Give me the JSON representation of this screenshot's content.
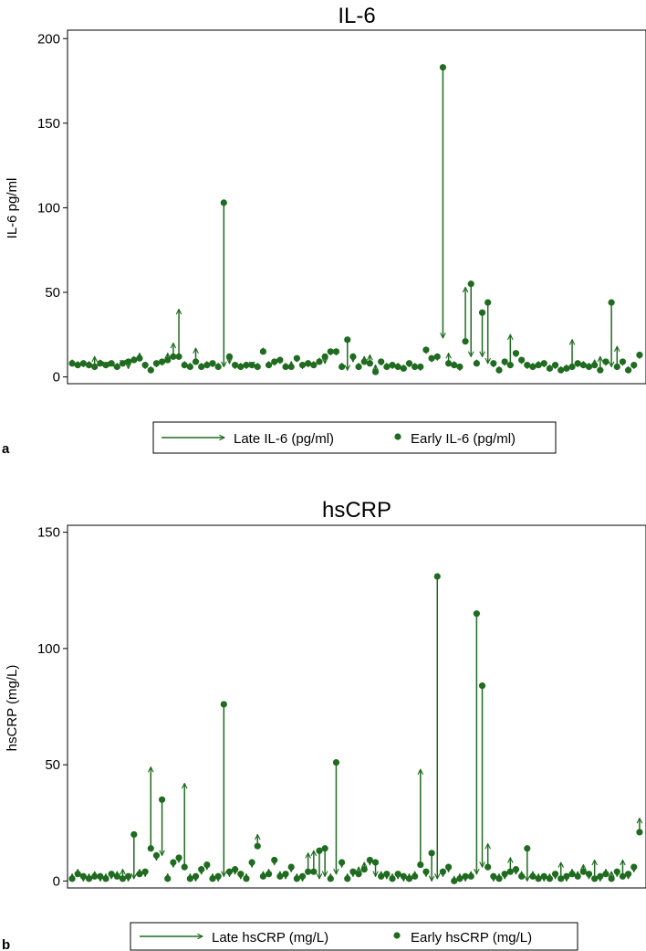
{
  "colors": {
    "mark": "#1f6b1f",
    "axis": "#000000",
    "frame": "#000000"
  },
  "chart_data": [
    {
      "type": "scatter",
      "panel_label": "a",
      "title": "IL-6",
      "ylabel": "IL-6 pg/ml",
      "xlabel": "",
      "ylim": [
        -4,
        205
      ],
      "yticks": [
        0,
        50,
        100,
        150,
        200
      ],
      "grid": false,
      "legend_position": "bottom",
      "series": [
        {
          "name": "Late IL-6 (pg/ml)",
          "marker": "arrow"
        },
        {
          "name": "Early IL-6 (pg/ml)",
          "marker": "dot"
        }
      ],
      "pairs": [
        {
          "x": 1,
          "early": 8,
          "late": 10
        },
        {
          "x": 2,
          "early": 7,
          "late": 9
        },
        {
          "x": 3,
          "early": 8,
          "late": 6
        },
        {
          "x": 4,
          "early": 7,
          "late": 9
        },
        {
          "x": 5,
          "early": 6,
          "late": 12
        },
        {
          "x": 6,
          "early": 8,
          "late": 10
        },
        {
          "x": 7,
          "early": 7,
          "late": 6
        },
        {
          "x": 8,
          "early": 8,
          "late": 9
        },
        {
          "x": 9,
          "early": 6,
          "late": 8
        },
        {
          "x": 10,
          "early": 8,
          "late": 7
        },
        {
          "x": 11,
          "early": 9,
          "late": 5
        },
        {
          "x": 12,
          "early": 10,
          "late": 12
        },
        {
          "x": 13,
          "early": 11,
          "late": 14
        },
        {
          "x": 14,
          "early": 7,
          "late": 5
        },
        {
          "x": 15,
          "early": 4,
          "late": 6
        },
        {
          "x": 16,
          "early": 8,
          "late": 6
        },
        {
          "x": 17,
          "early": 9,
          "late": 7
        },
        {
          "x": 18,
          "early": 10,
          "late": 14
        },
        {
          "x": 19,
          "early": 12,
          "late": 20
        },
        {
          "x": 20,
          "early": 12,
          "late": 40
        },
        {
          "x": 21,
          "early": 7,
          "late": 9
        },
        {
          "x": 22,
          "early": 6,
          "late": 8
        },
        {
          "x": 23,
          "early": 9,
          "late": 17
        },
        {
          "x": 24,
          "early": 6,
          "late": 8
        },
        {
          "x": 25,
          "early": 7,
          "late": 9
        },
        {
          "x": 26,
          "early": 8,
          "late": 6
        },
        {
          "x": 27,
          "early": 6,
          "late": 8
        },
        {
          "x": 28,
          "early": 103,
          "late": 6
        },
        {
          "x": 29,
          "early": 12,
          "late": 8
        },
        {
          "x": 30,
          "early": 7,
          "late": 5
        },
        {
          "x": 31,
          "early": 6,
          "late": 8
        },
        {
          "x": 32,
          "early": 7,
          "late": 5
        },
        {
          "x": 33,
          "early": 7,
          "late": 6
        },
        {
          "x": 34,
          "early": 6,
          "late": 8
        },
        {
          "x": 35,
          "early": 15,
          "late": 17
        },
        {
          "x": 36,
          "early": 7,
          "late": 9
        },
        {
          "x": 37,
          "early": 9,
          "late": 7
        },
        {
          "x": 38,
          "early": 10,
          "late": 8
        },
        {
          "x": 39,
          "early": 6,
          "late": 8
        },
        {
          "x": 40,
          "early": 6,
          "late": 9
        },
        {
          "x": 41,
          "early": 11,
          "late": 9
        },
        {
          "x": 42,
          "early": 7,
          "late": 5
        },
        {
          "x": 43,
          "early": 8,
          "late": 6
        },
        {
          "x": 44,
          "early": 7,
          "late": 9
        },
        {
          "x": 45,
          "early": 9,
          "late": 11
        },
        {
          "x": 46,
          "early": 12,
          "late": 8
        },
        {
          "x": 47,
          "early": 15,
          "late": 13
        },
        {
          "x": 48,
          "early": 15,
          "late": 13
        },
        {
          "x": 49,
          "early": 6,
          "late": 8
        },
        {
          "x": 50,
          "early": 22,
          "late": 4
        },
        {
          "x": 51,
          "early": 12,
          "late": 9
        },
        {
          "x": 52,
          "early": 6,
          "late": 8
        },
        {
          "x": 53,
          "early": 9,
          "late": 12
        },
        {
          "x": 54,
          "early": 8,
          "late": 13
        },
        {
          "x": 55,
          "early": 3,
          "late": 7
        },
        {
          "x": 56,
          "early": 9,
          "late": 7
        },
        {
          "x": 57,
          "early": 6,
          "late": 8
        },
        {
          "x": 58,
          "early": 7,
          "late": 5
        },
        {
          "x": 59,
          "early": 6,
          "late": 8
        },
        {
          "x": 60,
          "early": 5,
          "late": 7
        },
        {
          "x": 61,
          "early": 8,
          "late": 6
        },
        {
          "x": 62,
          "early": 6,
          "late": 8
        },
        {
          "x": 63,
          "early": 6,
          "late": 4
        },
        {
          "x": 64,
          "early": 16,
          "late": 14
        },
        {
          "x": 65,
          "early": 11,
          "late": 9
        },
        {
          "x": 66,
          "early": 12,
          "late": 10
        },
        {
          "x": 67,
          "early": 183,
          "late": 23
        },
        {
          "x": 68,
          "early": 8,
          "late": 14
        },
        {
          "x": 69,
          "early": 7,
          "late": 9
        },
        {
          "x": 70,
          "early": 6,
          "late": 4
        },
        {
          "x": 71,
          "early": 21,
          "late": 53
        },
        {
          "x": 72,
          "early": 55,
          "late": 12
        },
        {
          "x": 73,
          "early": 8,
          "late": 10
        },
        {
          "x": 74,
          "early": 38,
          "late": 12
        },
        {
          "x": 75,
          "early": 44,
          "late": 8
        },
        {
          "x": 76,
          "early": 8,
          "late": 6
        },
        {
          "x": 77,
          "early": 4,
          "late": 6
        },
        {
          "x": 78,
          "early": 9,
          "late": 7
        },
        {
          "x": 79,
          "early": 7,
          "late": 25
        },
        {
          "x": 80,
          "early": 14,
          "late": 12
        },
        {
          "x": 81,
          "early": 10,
          "late": 8
        },
        {
          "x": 82,
          "early": 7,
          "late": 5
        },
        {
          "x": 83,
          "early": 6,
          "late": 8
        },
        {
          "x": 84,
          "early": 7,
          "late": 9
        },
        {
          "x": 85,
          "early": 8,
          "late": 6
        },
        {
          "x": 86,
          "early": 5,
          "late": 7
        },
        {
          "x": 87,
          "early": 7,
          "late": 5
        },
        {
          "x": 88,
          "early": 4,
          "late": 6
        },
        {
          "x": 89,
          "early": 5,
          "late": 7
        },
        {
          "x": 90,
          "early": 6,
          "late": 22
        },
        {
          "x": 91,
          "early": 8,
          "late": 6
        },
        {
          "x": 92,
          "early": 7,
          "late": 9
        },
        {
          "x": 93,
          "early": 6,
          "late": 8
        },
        {
          "x": 94,
          "early": 7,
          "late": 10
        },
        {
          "x": 95,
          "early": 4,
          "late": 12
        },
        {
          "x": 96,
          "early": 9,
          "late": 7
        },
        {
          "x": 97,
          "early": 44,
          "late": 6
        },
        {
          "x": 98,
          "early": 6,
          "late": 18
        },
        {
          "x": 99,
          "early": 9,
          "late": 7
        },
        {
          "x": 100,
          "early": 4,
          "late": 6
        },
        {
          "x": 101,
          "early": 7,
          "late": 5
        },
        {
          "x": 102,
          "early": 13,
          "late": 11
        }
      ]
    },
    {
      "type": "scatter",
      "panel_label": "b",
      "title": "hsCRP",
      "ylabel": "hsCRP (mg/L)",
      "xlabel": "",
      "ylim": [
        -3,
        153
      ],
      "yticks": [
        0,
        50,
        100,
        150
      ],
      "grid": false,
      "legend_position": "bottom",
      "series": [
        {
          "name": "Late hsCRP (mg/L)",
          "marker": "arrow"
        },
        {
          "name": "Early hsCRP (mg/L)",
          "marker": "dot"
        }
      ],
      "pairs": [
        {
          "x": 1,
          "early": 1,
          "late": 3
        },
        {
          "x": 2,
          "early": 3,
          "late": 5
        },
        {
          "x": 3,
          "early": 2,
          "late": 0
        },
        {
          "x": 4,
          "early": 1,
          "late": 3
        },
        {
          "x": 5,
          "early": 2,
          "late": 4
        },
        {
          "x": 6,
          "early": 2,
          "late": 0
        },
        {
          "x": 7,
          "early": 1,
          "late": 3
        },
        {
          "x": 8,
          "early": 3,
          "late": 1
        },
        {
          "x": 9,
          "early": 2,
          "late": 4
        },
        {
          "x": 10,
          "early": 1,
          "late": 5
        },
        {
          "x": 11,
          "early": 2,
          "late": 0
        },
        {
          "x": 12,
          "early": 20,
          "late": 1
        },
        {
          "x": 13,
          "early": 3,
          "late": 5
        },
        {
          "x": 14,
          "early": 4,
          "late": 2
        },
        {
          "x": 15,
          "early": 14,
          "late": 49
        },
        {
          "x": 16,
          "early": 11,
          "late": 9
        },
        {
          "x": 17,
          "early": 35,
          "late": 11
        },
        {
          "x": 18,
          "early": 1,
          "late": 3
        },
        {
          "x": 19,
          "early": 8,
          "late": 6
        },
        {
          "x": 20,
          "early": 10,
          "late": 8
        },
        {
          "x": 21,
          "early": 6,
          "late": 42
        },
        {
          "x": 22,
          "early": 1,
          "late": 3
        },
        {
          "x": 23,
          "early": 2,
          "late": 0
        },
        {
          "x": 24,
          "early": 5,
          "late": 3
        },
        {
          "x": 25,
          "early": 7,
          "late": 5
        },
        {
          "x": 26,
          "early": 1,
          "late": 3
        },
        {
          "x": 27,
          "early": 2,
          "late": 0
        },
        {
          "x": 28,
          "early": 76,
          "late": 2
        },
        {
          "x": 29,
          "early": 4,
          "late": 2
        },
        {
          "x": 30,
          "early": 5,
          "late": 3
        },
        {
          "x": 31,
          "early": 3,
          "late": 1
        },
        {
          "x": 32,
          "early": 1,
          "late": 3
        },
        {
          "x": 33,
          "early": 8,
          "late": 6
        },
        {
          "x": 34,
          "early": 15,
          "late": 20
        },
        {
          "x": 35,
          "early": 2,
          "late": 4
        },
        {
          "x": 36,
          "early": 3,
          "late": 5
        },
        {
          "x": 37,
          "early": 9,
          "late": 7
        },
        {
          "x": 38,
          "early": 2,
          "late": 4
        },
        {
          "x": 39,
          "early": 3,
          "late": 1
        },
        {
          "x": 40,
          "early": 6,
          "late": 4
        },
        {
          "x": 41,
          "early": 1,
          "late": 3
        },
        {
          "x": 42,
          "early": 2,
          "late": 0
        },
        {
          "x": 43,
          "early": 4,
          "late": 12
        },
        {
          "x": 44,
          "early": 4,
          "late": 13
        },
        {
          "x": 45,
          "early": 13,
          "late": 1
        },
        {
          "x": 46,
          "early": 14,
          "late": 2
        },
        {
          "x": 47,
          "early": 1,
          "late": 3
        },
        {
          "x": 48,
          "early": 51,
          "late": 3
        },
        {
          "x": 49,
          "early": 8,
          "late": 6
        },
        {
          "x": 50,
          "early": 1,
          "late": 3
        },
        {
          "x": 51,
          "early": 4,
          "late": 2
        },
        {
          "x": 52,
          "early": 3,
          "late": 6
        },
        {
          "x": 53,
          "early": 5,
          "late": 8
        },
        {
          "x": 54,
          "early": 9,
          "late": 7
        },
        {
          "x": 55,
          "early": 8,
          "late": 2
        },
        {
          "x": 56,
          "early": 2,
          "late": 4
        },
        {
          "x": 57,
          "early": 3,
          "late": 1
        },
        {
          "x": 58,
          "early": 1,
          "late": 3
        },
        {
          "x": 59,
          "early": 3,
          "late": 1
        },
        {
          "x": 60,
          "early": 2,
          "late": 0
        },
        {
          "x": 61,
          "early": 1,
          "late": 3
        },
        {
          "x": 62,
          "early": 2,
          "late": 4
        },
        {
          "x": 63,
          "early": 7,
          "late": 48
        },
        {
          "x": 64,
          "early": 4,
          "late": 2
        },
        {
          "x": 65,
          "early": 12,
          "late": 0
        },
        {
          "x": 66,
          "early": 131,
          "late": 1
        },
        {
          "x": 67,
          "early": 4,
          "late": 2
        },
        {
          "x": 68,
          "early": 6,
          "late": 4
        },
        {
          "x": 69,
          "early": 0,
          "late": 2
        },
        {
          "x": 70,
          "early": 1,
          "late": 3
        },
        {
          "x": 71,
          "early": 2,
          "late": 0
        },
        {
          "x": 72,
          "early": 2,
          "late": 4
        },
        {
          "x": 73,
          "early": 115,
          "late": 3
        },
        {
          "x": 74,
          "early": 84,
          "late": 6
        },
        {
          "x": 75,
          "early": 6,
          "late": 16
        },
        {
          "x": 76,
          "early": 2,
          "late": 0
        },
        {
          "x": 77,
          "early": 1,
          "late": 3
        },
        {
          "x": 78,
          "early": 3,
          "late": 1
        },
        {
          "x": 79,
          "early": 4,
          "late": 10
        },
        {
          "x": 80,
          "early": 5,
          "late": 3
        },
        {
          "x": 81,
          "early": 2,
          "late": 4
        },
        {
          "x": 82,
          "early": 14,
          "late": 0
        },
        {
          "x": 83,
          "early": 2,
          "late": 4
        },
        {
          "x": 84,
          "early": 1,
          "late": 3
        },
        {
          "x": 85,
          "early": 2,
          "late": 0
        },
        {
          "x": 86,
          "early": 1,
          "late": 3
        },
        {
          "x": 87,
          "early": 3,
          "late": 1
        },
        {
          "x": 88,
          "early": 1,
          "late": 8
        },
        {
          "x": 89,
          "early": 2,
          "late": 0
        },
        {
          "x": 90,
          "early": 3,
          "late": 5
        },
        {
          "x": 91,
          "early": 2,
          "late": 4
        },
        {
          "x": 92,
          "early": 4,
          "late": 7
        },
        {
          "x": 93,
          "early": 3,
          "late": 1
        },
        {
          "x": 94,
          "early": 1,
          "late": 9
        },
        {
          "x": 95,
          "early": 2,
          "late": 0
        },
        {
          "x": 96,
          "early": 3,
          "late": 5
        },
        {
          "x": 97,
          "early": 1,
          "late": 4
        },
        {
          "x": 98,
          "early": 4,
          "late": 2
        },
        {
          "x": 99,
          "early": 2,
          "late": 9
        },
        {
          "x": 100,
          "early": 3,
          "late": 1
        },
        {
          "x": 101,
          "early": 6,
          "late": 4
        },
        {
          "x": 102,
          "early": 21,
          "late": 27
        }
      ]
    }
  ]
}
